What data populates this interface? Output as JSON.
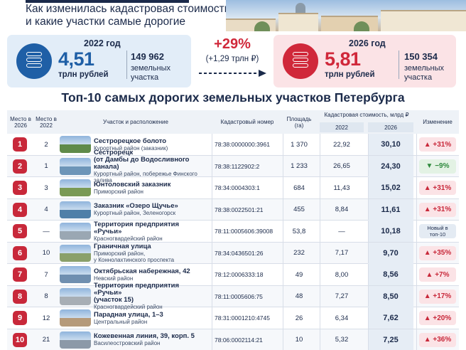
{
  "header": {
    "subtitle_line1": "Как изменилась кадастровая стоимость",
    "subtitle_line2": "и какие участки самые дорогие"
  },
  "summary_2022": {
    "year": "2022 год",
    "value": "4,51",
    "unit": "трлн рублей",
    "count": "149 962",
    "count_label": "земельных участка",
    "color": "#1f5fa6"
  },
  "growth": {
    "percent": "+29%",
    "absolute": "(+1,29 трлн ₽)"
  },
  "summary_2026": {
    "year": "2026 год",
    "value": "5,81",
    "unit": "трлн рублей",
    "count": "150 354",
    "count_label": "земельных участка",
    "color": "#d0283a"
  },
  "table": {
    "title": "Топ-10 самых дорогих земельных участков Петербурга",
    "headers": {
      "rank_2026": "Место в 2026",
      "rank_2022": "Место в 2022",
      "plot": "Участок и расположение",
      "cadastral": "Кадастровый номер",
      "area": "Площадь (га)",
      "price": "Кадастровая стоимость, млрд ₽",
      "price_2022": "2022",
      "price_2026": "2026",
      "change": "Изменение"
    },
    "rows": [
      {
        "rank": "1",
        "prev": "2",
        "name": "Сестрорецкое болото",
        "location": "Курортный район (заказник)",
        "cadastral": "78:38:0000000:3961",
        "area": "1 370",
        "p2022": "22,92",
        "p2026": "30,10",
        "change": "▲ +31%",
        "trend": "up",
        "thumb": "#5f8a4a"
      },
      {
        "rank": "2",
        "prev": "1",
        "name": "Сестрорецк",
        "name2": "(от Дамбы до Водосливного канала)",
        "location": "Курортный район, побережье Финского залива",
        "cadastral": "78:38:1122902:2",
        "area": "1 233",
        "p2022": "26,65",
        "p2026": "24,30",
        "change": "▼ −9%",
        "trend": "down",
        "thumb": "#6d95b8"
      },
      {
        "rank": "3",
        "prev": "3",
        "name": "Юнтоловский заказник",
        "location": "Приморский район",
        "cadastral": "78:34:0004303:1",
        "area": "684",
        "p2022": "11,43",
        "p2026": "15,02",
        "change": "▲ +31%",
        "trend": "up",
        "thumb": "#7a9a55"
      },
      {
        "rank": "4",
        "prev": "4",
        "name": "Заказник «Озеро Щучье»",
        "location": "Курортный район, Зеленогорск",
        "cadastral": "78:38:0022501:21",
        "area": "455",
        "p2022": "8,84",
        "p2026": "11,61",
        "change": "▲ +31%",
        "trend": "up",
        "thumb": "#4f7fa8"
      },
      {
        "rank": "5",
        "prev": "—",
        "name": "Территория предприятия «Ручьи»",
        "location": "Красногвардейский район",
        "cadastral": "78:11:0005606:39008",
        "area": "53,8",
        "p2022": "—",
        "p2026": "10,18",
        "change": "Новый в топ-10",
        "trend": "new",
        "thumb": "#9aa7b3"
      },
      {
        "rank": "6",
        "prev": "10",
        "name": "Граничная улица",
        "location": "Приморский район,",
        "location2": "у Коннолахтинского проспекта",
        "cadastral": "78:34:0436501:26",
        "area": "232",
        "p2022": "7,17",
        "p2026": "9,70",
        "change": "▲ +35%",
        "trend": "up",
        "thumb": "#8aa06a"
      },
      {
        "rank": "7",
        "prev": "7",
        "name": "Октябрьская набережная, 42",
        "location": "Невский район",
        "cadastral": "78:12:0006333:18",
        "area": "49",
        "p2022": "8,00",
        "p2026": "8,56",
        "change": "▲ +7%",
        "trend": "up",
        "thumb": "#6f8fb0"
      },
      {
        "rank": "8",
        "prev": "8",
        "name": "Территория предприятия «Ручьи»",
        "name2": "(участок 15)",
        "location": "Красногвардейский район",
        "cadastral": "78:11:0005606:75",
        "area": "48",
        "p2022": "7,27",
        "p2026": "8,50",
        "change": "▲ +17%",
        "trend": "up",
        "thumb": "#a7aeb5"
      },
      {
        "rank": "9",
        "prev": "12",
        "name": "Парадная улица, 1–3",
        "location": "Центральный район",
        "cadastral": "78:31:0001210:4745",
        "area": "26",
        "p2022": "6,34",
        "p2026": "7,62",
        "change": "▲ +20%",
        "trend": "up",
        "thumb": "#b59a7a"
      },
      {
        "rank": "10",
        "prev": "21",
        "name": "Кожевенная линия, 39, корп. 5",
        "location": "Василеостровский район",
        "cadastral": "78:06:0002114:21",
        "area": "10",
        "p2022": "5,32",
        "p2026": "7,25",
        "change": "▲ +36%",
        "trend": "up",
        "thumb": "#8c99a8"
      }
    ]
  }
}
